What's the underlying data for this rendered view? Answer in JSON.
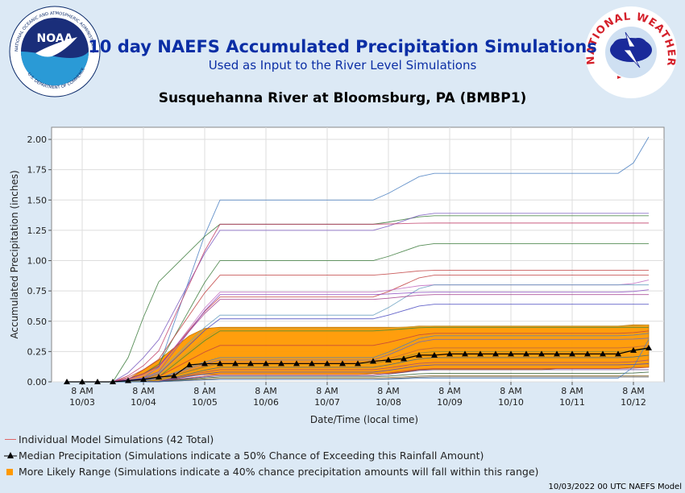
{
  "header": {
    "title": "10 day NAEFS Accumulated Precipitation Simulations",
    "subtitle": "Used as Input to the River Level Simulations",
    "site": "Susquehanna River at Bloomsburg, PA (BMBP1)",
    "noaa_logo_text": "NOAA",
    "noaa_ring_text": "NATIONAL OCEANIC AND ATMOSPHERIC ADMINISTRATION",
    "noaa_ring_bottom": "U.S. DEPARTMENT OF COMMERCE",
    "nws_ring_text": "NATIONAL WEATHER SERVICE"
  },
  "legend": {
    "individual": "Individual Model Simulations (42 Total)",
    "median": "Median Precipitation (Simulations indicate a 50% Chance of Exceeding this Rainfall Amount)",
    "range": "More Likely Range (Simulations indicate a 40% chance precipitation amounts will fall within this range)"
  },
  "footer": "10/03/2022 00 UTC NAEFS Model",
  "colors": {
    "title": "#0b2ea5",
    "background": "#dce9f5",
    "range_fill": "#ff9900",
    "median": "#000000",
    "individual": "#e06666"
  },
  "chart_data": {
    "type": "line",
    "ylabel": "Accumulated Precipitation (inches)",
    "xlabel": "Date/Time (local time)",
    "ylim": [
      0,
      2.1
    ],
    "yticks": [
      "0.00",
      "0.25",
      "0.50",
      "0.75",
      "1.00",
      "1.25",
      "1.50",
      "1.75",
      "2.00"
    ],
    "xticks": [
      {
        "time": "8 AM",
        "date": "10/03"
      },
      {
        "time": "8 AM",
        "date": "10/04"
      },
      {
        "time": "8 AM",
        "date": "10/05"
      },
      {
        "time": "8 AM",
        "date": "10/06"
      },
      {
        "time": "8 AM",
        "date": "10/07"
      },
      {
        "time": "8 AM",
        "date": "10/08"
      },
      {
        "time": "8 AM",
        "date": "10/09"
      },
      {
        "time": "8 AM",
        "date": "10/10"
      },
      {
        "time": "8 AM",
        "date": "10/11"
      },
      {
        "time": "8 AM",
        "date": "10/12"
      }
    ],
    "grid": true,
    "x_days": [
      -0.25,
      0,
      0.25,
      0.5,
      0.75,
      1,
      1.25,
      1.5,
      1.75,
      2,
      2.25,
      2.5,
      2.75,
      3,
      3.25,
      3.5,
      3.75,
      4,
      4.25,
      4.5,
      4.75,
      5,
      5.25,
      5.5,
      5.75,
      6,
      6.25,
      6.5,
      6.75,
      7,
      7.25,
      7.5,
      7.75,
      8,
      8.25,
      8.5,
      8.75,
      9,
      9.25
    ],
    "median": [
      0,
      0,
      0,
      0,
      0.01,
      0.02,
      0.04,
      0.05,
      0.14,
      0.15,
      0.15,
      0.15,
      0.15,
      0.15,
      0.15,
      0.15,
      0.15,
      0.15,
      0.15,
      0.15,
      0.17,
      0.18,
      0.19,
      0.22,
      0.22,
      0.23,
      0.23,
      0.23,
      0.23,
      0.23,
      0.23,
      0.23,
      0.23,
      0.23,
      0.23,
      0.23,
      0.23,
      0.26,
      0.28
    ],
    "range_upper": [
      0,
      0,
      0,
      0,
      0.02,
      0.1,
      0.18,
      0.28,
      0.38,
      0.44,
      0.45,
      0.45,
      0.45,
      0.45,
      0.45,
      0.45,
      0.45,
      0.45,
      0.45,
      0.45,
      0.45,
      0.45,
      0.45,
      0.46,
      0.46,
      0.46,
      0.46,
      0.46,
      0.46,
      0.46,
      0.46,
      0.46,
      0.46,
      0.46,
      0.46,
      0.46,
      0.46,
      0.47,
      0.47
    ],
    "range_lower": [
      0,
      0,
      0,
      0,
      0,
      0,
      0,
      0.02,
      0.05,
      0.06,
      0.06,
      0.06,
      0.06,
      0.06,
      0.06,
      0.06,
      0.06,
      0.06,
      0.06,
      0.06,
      0.07,
      0.07,
      0.08,
      0.1,
      0.1,
      0.1,
      0.1,
      0.1,
      0.1,
      0.1,
      0.1,
      0.1,
      0.11,
      0.11,
      0.11,
      0.11,
      0.11,
      0.12,
      0.12
    ],
    "series": [
      {
        "color": "#4a7fc1",
        "final": 2.02,
        "day1": 0.05,
        "day2": 1.5,
        "late": 1.72
      },
      {
        "color": "#3a7a3a",
        "final": 1.37,
        "day1": 0.8,
        "day2": 1.3,
        "late": 1.37
      },
      {
        "color": "#7a5ac1",
        "final": 1.39,
        "day1": 0.3,
        "day2": 1.25,
        "late": 1.39
      },
      {
        "color": "#c1406a",
        "final": 1.31,
        "day1": 0.2,
        "day2": 1.3,
        "late": 1.31
      },
      {
        "color": "#3a7a3a",
        "final": 1.14,
        "day1": 0.1,
        "day2": 1.0,
        "late": 1.14
      },
      {
        "color": "#c14040",
        "final": 0.92,
        "day1": 0.15,
        "day2": 0.88,
        "late": 0.92
      },
      {
        "color": "#c14040",
        "final": 0.88,
        "day1": 0.1,
        "day2": 0.7,
        "late": 0.88
      },
      {
        "color": "#c16ac1",
        "final": 0.84,
        "day1": 0.08,
        "day2": 0.74,
        "late": 0.8
      },
      {
        "color": "#6aa0c1",
        "final": 0.8,
        "day1": 0.05,
        "day2": 0.55,
        "late": 0.8
      },
      {
        "color": "#8a4ac1",
        "final": 0.76,
        "day1": 0.05,
        "day2": 0.72,
        "late": 0.74
      },
      {
        "color": "#a03a8a",
        "final": 0.72,
        "day1": 0.1,
        "day2": 0.68,
        "late": 0.72
      },
      {
        "color": "#4a4ac1",
        "final": 0.64,
        "day1": 0.04,
        "day2": 0.52,
        "late": 0.64
      },
      {
        "color": "#c1a040",
        "final": 0.47,
        "day1": 0.03,
        "day2": 0.44,
        "late": 0.46
      },
      {
        "color": "#3a8a3a",
        "final": 0.45,
        "day1": 0.02,
        "day2": 0.42,
        "late": 0.45
      },
      {
        "color": "#c14040",
        "final": 0.42,
        "day1": 0.03,
        "day2": 0.3,
        "late": 0.4
      },
      {
        "color": "#4a7fc1",
        "final": 0.4,
        "day1": 0.02,
        "day2": 0.2,
        "late": 0.38
      },
      {
        "color": "#6a6ac1",
        "final": 0.36,
        "day1": 0.02,
        "day2": 0.18,
        "late": 0.35
      },
      {
        "color": "#c16a40",
        "final": 0.3,
        "day1": 0.01,
        "day2": 0.16,
        "late": 0.28
      },
      {
        "color": "#8a8a3a",
        "final": 0.27,
        "day1": 0.01,
        "day2": 0.15,
        "late": 0.25
      },
      {
        "color": "#3a6a8a",
        "final": 0.22,
        "day1": 0.0,
        "day2": 0.12,
        "late": 0.2
      },
      {
        "color": "#a04a7a",
        "final": 0.18,
        "day1": 0.0,
        "day2": 0.1,
        "late": 0.16
      },
      {
        "color": "#4a4ac1",
        "final": 0.15,
        "day1": 0.0,
        "day2": 0.08,
        "late": 0.14
      },
      {
        "color": "#c14040",
        "final": 0.12,
        "day1": 0.0,
        "day2": 0.06,
        "late": 0.11
      },
      {
        "color": "#5a3a8a",
        "final": 0.1,
        "day1": 0.0,
        "day2": 0.05,
        "late": 0.1
      },
      {
        "color": "#2a5a2a",
        "final": 0.08,
        "day1": 0.0,
        "day2": 0.04,
        "late": 0.07
      },
      {
        "color": "#8a6a2a",
        "final": 0.05,
        "day1": 0.0,
        "day2": 0.03,
        "late": 0.05
      },
      {
        "color": "#3a3a3a",
        "final": 0.04,
        "day1": 0.0,
        "day2": 0.02,
        "late": 0.04
      },
      {
        "color": "#4a7fc1",
        "final": 0.35,
        "day1": 0.0,
        "day2": 0.02,
        "late": 0.03
      }
    ]
  }
}
